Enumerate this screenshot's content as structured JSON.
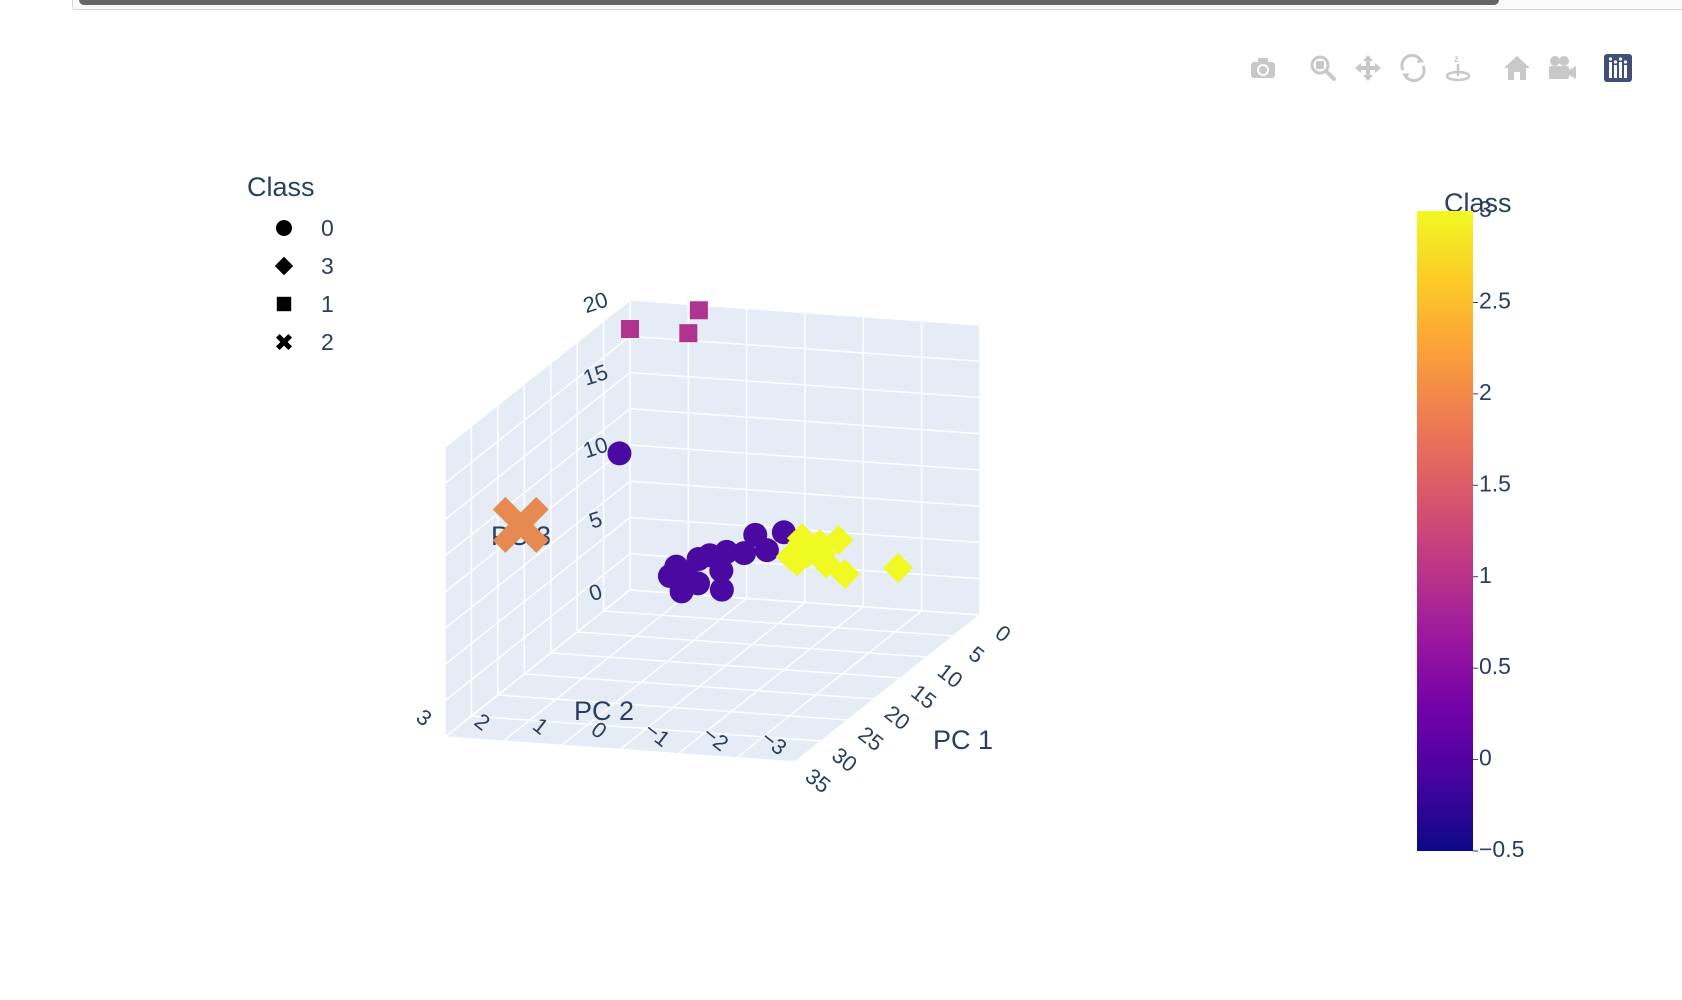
{
  "modebar": {
    "buttons": [
      {
        "name": "camera-icon",
        "title": "Download plot as a png"
      },
      {
        "name": "zoom-icon",
        "title": "Zoom"
      },
      {
        "name": "pan-icon",
        "title": "Pan"
      },
      {
        "name": "orbit-rotation-icon",
        "title": "Orbital rotation"
      },
      {
        "name": "turntable-rotation-icon",
        "title": "Turntable rotation"
      },
      {
        "name": "home-icon",
        "title": "Reset camera to default"
      },
      {
        "name": "camera-view-icon",
        "title": "Reset camera to last save"
      },
      {
        "name": "plotly-logo-icon",
        "title": "Produced with Plotly"
      }
    ]
  },
  "chart_data": {
    "type": "scatter3d",
    "legend": {
      "title": "Class",
      "placement": "top-left",
      "items": [
        {
          "label": "0",
          "symbol": "circle"
        },
        {
          "label": "3",
          "symbol": "diamond"
        },
        {
          "label": "1",
          "symbol": "square"
        },
        {
          "label": "2",
          "symbol": "x"
        }
      ]
    },
    "colorbar": {
      "title": "Class",
      "range": [
        -0.5,
        3
      ],
      "ticks": [
        "3",
        "2.5",
        "2",
        "1.5",
        "1",
        "0.5",
        "0",
        "−0.5"
      ],
      "colors": [
        "#f0f921",
        "#fdca26",
        "#fb9f3a",
        "#ed7953",
        "#d8576b",
        "#bd3786",
        "#9c179e",
        "#7201a8",
        "#46039f",
        "#0d0887"
      ]
    },
    "axes": {
      "x": {
        "label": "PC 1",
        "range": [
          0,
          35
        ],
        "ticks": [
          "0",
          "5",
          "10",
          "15",
          "20",
          "25",
          "30",
          "35"
        ]
      },
      "y": {
        "label": "PC 2",
        "range": [
          -3,
          3
        ],
        "ticks": [
          "−3",
          "−2",
          "−1",
          "0",
          "1",
          "2",
          "3"
        ]
      },
      "z": {
        "label": "PC 3",
        "range": [
          0,
          20
        ],
        "ticks": [
          "0",
          "5",
          "10",
          "15",
          "20"
        ]
      }
    },
    "series": [
      {
        "name": "0",
        "symbol": "circle",
        "color": "#4a0aa1",
        "points": [
          [
            2,
            3,
            10
          ],
          [
            4,
            0,
            6
          ],
          [
            5,
            0.2,
            5
          ],
          [
            5,
            0.4,
            6
          ],
          [
            6,
            0.5,
            5
          ],
          [
            6,
            0.8,
            5
          ],
          [
            7,
            1,
            5
          ],
          [
            7,
            0.8,
            4
          ],
          [
            8,
            1.1,
            5
          ],
          [
            8,
            0.7,
            3
          ],
          [
            7,
            1.2,
            3
          ],
          [
            9,
            1.2,
            4
          ],
          [
            9,
            1.5,
            4
          ],
          [
            10,
            1.3,
            5
          ],
          [
            9,
            1.3,
            3
          ]
        ]
      },
      {
        "name": "3",
        "symbol": "diamond",
        "color": "#f0f921",
        "points": [
          [
            10,
            -2.5,
            6
          ],
          [
            9,
            -1.5,
            5
          ],
          [
            8,
            -1,
            6
          ],
          [
            8,
            -1.3,
            7
          ],
          [
            7,
            -1,
            5
          ],
          [
            7,
            -0.8,
            6
          ],
          [
            6,
            -0.8,
            6
          ],
          [
            6,
            -0.5,
            6
          ],
          [
            5,
            -0.5,
            5
          ],
          [
            5,
            -0.4,
            6
          ],
          [
            7,
            -0.5,
            5
          ],
          [
            6,
            -0.3,
            5
          ]
        ]
      },
      {
        "name": "1",
        "symbol": "square",
        "color": "#b0338e",
        "points": [
          [
            0,
            2,
            18
          ],
          [
            -2,
            2,
            19
          ],
          [
            0,
            3,
            18
          ]
        ]
      },
      {
        "name": "2",
        "symbol": "x",
        "color": "#e68a52",
        "points": [
          [
            35,
            1.7,
            15
          ]
        ]
      }
    ]
  }
}
